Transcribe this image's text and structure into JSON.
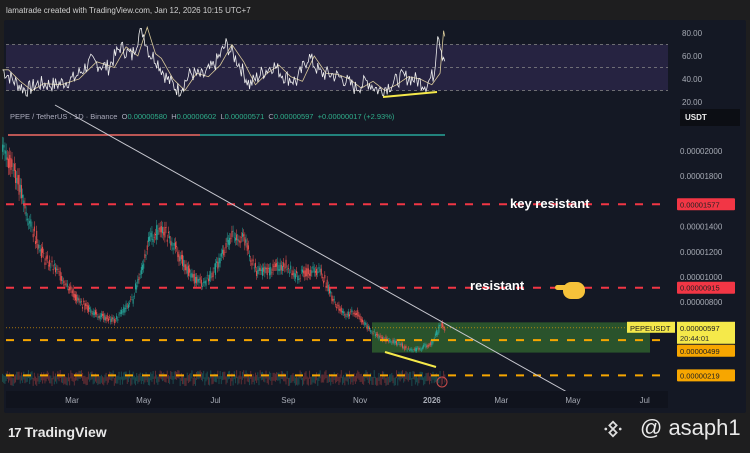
{
  "credit": "lamatrade created with TradingView.com, Jan 12, 2026 10:15 UTC+7",
  "legend": {
    "symbol": "PEPE / TetherUS · 1D · Binance",
    "o_label": "O",
    "o": "0.00000580",
    "h_label": "H",
    "h": "0.00000602",
    "l_label": "L",
    "l": "0.00000571",
    "c_label": "C",
    "c": "0.00000597",
    "change": "+0.00000017 (+2.93%)"
  },
  "currency": "USDT",
  "annotations": {
    "key_resistant": "key resistant",
    "resistant": "resistant",
    "hand_icon": "pointing-hand-emoji"
  },
  "footer": {
    "logo": "TradingView",
    "logo_mark": "17",
    "handle": "@ asaph1",
    "exchange_icon": "binance-icon"
  },
  "colors": {
    "bg": "#141824",
    "up": "#26a69a",
    "down": "#ef5350",
    "red_line": "#f23645",
    "orange_line": "#f7a600",
    "zone": "#2e5e2e",
    "yellow": "#f5e94a"
  },
  "chart_data": [
    {
      "type": "line",
      "panel": "RSI",
      "ylim": [
        20,
        85
      ],
      "yticks": [
        "80.00",
        "60.00",
        "40.00",
        "20.00"
      ],
      "bands": [
        30,
        70
      ],
      "x_days": [
        0,
        10,
        20,
        30,
        45,
        60,
        75,
        90,
        100,
        110,
        118,
        125,
        130,
        140,
        150,
        160,
        170,
        180,
        190,
        200,
        210,
        220,
        230,
        240,
        250,
        260,
        270,
        280,
        290,
        300,
        310,
        320,
        330,
        340,
        350,
        360,
        367,
        370,
        374,
        376
      ],
      "values": [
        48,
        38,
        30,
        36,
        35,
        40,
        55,
        50,
        68,
        60,
        85,
        62,
        58,
        40,
        30,
        45,
        42,
        52,
        70,
        55,
        35,
        45,
        52,
        42,
        38,
        60,
        45,
        44,
        40,
        32,
        38,
        30,
        35,
        42,
        40,
        35,
        45,
        82,
        62,
        58
      ]
    },
    {
      "type": "candlestick",
      "panel": "price",
      "pair": "PEPEUSDT",
      "ylim": [
        2e-06,
        2.15e-05
      ],
      "yticks": [
        "0.00002000",
        "0.00001800",
        "0.00001400",
        "0.00001200",
        "0.00001000",
        "0.00000800"
      ],
      "xticks": [
        "Mar",
        "May",
        "Jul",
        "Sep",
        "Nov",
        "2026",
        "Mar",
        "May",
        "Jul"
      ],
      "approx_close_days": [
        0,
        10,
        20,
        35,
        50,
        65,
        80,
        95,
        110,
        125,
        135,
        145,
        160,
        170,
        180,
        195,
        205,
        215,
        225,
        240,
        250,
        260,
        270,
        282,
        290,
        300,
        310,
        320,
        335,
        345,
        355,
        365,
        372,
        376
      ],
      "approx_close": [
        2e-05,
        1.85e-05,
        1.5e-05,
        1.15e-05,
        1e-05,
        8e-06,
        7e-06,
        6.5e-06,
        8.2e-06,
        1.3e-05,
        1.4e-05,
        1.25e-05,
        1e-05,
        9.5e-06,
        1.05e-05,
        1.35e-05,
        1.3e-05,
        1.05e-05,
        1.05e-05,
        1.1e-05,
        1e-05,
        1.05e-05,
        1.05e-05,
        8e-06,
        7e-06,
        7.2e-06,
        6e-06,
        5.2e-06,
        4.8e-06,
        4.2e-06,
        4.3e-06,
        4.8e-06,
        6.2e-06,
        5.97e-06
      ],
      "levels": [
        {
          "price": "0.00001577",
          "color": "#f23645"
        },
        {
          "price": "0.00000915",
          "color": "#f23645"
        },
        {
          "price": "0.00000499",
          "color": "#f7a600"
        },
        {
          "price": "0.00000219",
          "color": "#f7a600"
        }
      ],
      "last": {
        "price": "0.00000597",
        "countdown": "20:44:01",
        "label": "PEPEUSDT"
      },
      "zone": [
        4e-06,
        6.4e-06
      ]
    }
  ]
}
